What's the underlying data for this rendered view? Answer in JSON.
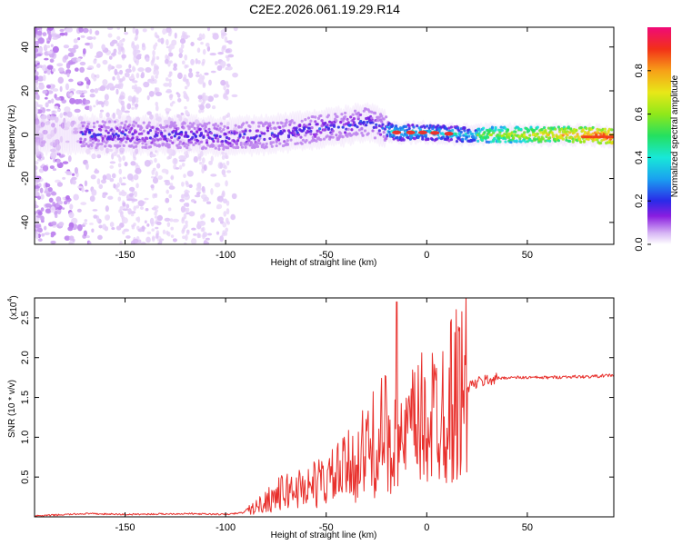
{
  "title": "C2E2.2026.061.19.29.R14",
  "chart_data": [
    {
      "type": "heatmap",
      "title": "C2E2.2026.061.19.29.R14",
      "xlabel": "Height of straight line (km)",
      "ylabel": "Frequency (Hz)",
      "xlim": [
        -195,
        93
      ],
      "ylim": [
        -50,
        49
      ],
      "xticks": [
        -150,
        -100,
        -50,
        0,
        50
      ],
      "yticks": [
        -40,
        -20,
        0,
        20,
        40
      ],
      "grid": false,
      "colorbar": {
        "label": "Normalized spectral amplitude",
        "range": [
          0,
          1
        ],
        "ticks": [
          0.0,
          0.2,
          0.4,
          0.6,
          0.8
        ],
        "tick_labels": [
          "0.0",
          "0.2",
          "0.4",
          "0.6",
          "0.8"
        ],
        "colormap": "rainbow"
      },
      "ridge": {
        "description": "centroid frequency of dominant energy vs height",
        "x": [
          -195,
          -170,
          -150,
          -120,
          -100,
          -80,
          -60,
          -40,
          -30,
          -22,
          -15,
          0,
          20,
          50,
          80,
          93
        ],
        "y": [
          0,
          0,
          0,
          0,
          -1,
          0,
          2,
          4,
          6,
          3,
          1,
          1,
          0,
          0,
          0,
          -1
        ]
      }
    },
    {
      "type": "line",
      "xlabel": "Height of straight line (km)",
      "ylabel": "SNR (10 * v/v)",
      "y_multiplier": "(x10",
      "y_multiplier_exp": "4",
      "y_multiplier_close": ")",
      "xlim": [
        -195,
        93
      ],
      "ylim": [
        0,
        2.75
      ],
      "xticks": [
        -150,
        -100,
        -50,
        0,
        50
      ],
      "yticks": [
        0.5,
        1.0,
        1.5,
        2.0,
        2.5
      ],
      "ytick_labels": [
        "0.5",
        "1.0",
        "1.5",
        "2.0",
        "2.5"
      ],
      "grid": false,
      "series": [
        {
          "name": "SNR",
          "color": "#e8302c",
          "x": [
            -195,
            -170,
            -150,
            -120,
            -100,
            -92,
            -85,
            -80,
            -75,
            -70,
            -65,
            -60,
            -55,
            -50,
            -45,
            -40,
            -35,
            -30,
            -25,
            -20,
            -17,
            -15,
            -14,
            -12,
            -10,
            -5,
            0,
            5,
            10,
            15,
            20,
            25,
            30,
            35,
            40,
            50,
            60,
            70,
            80,
            93
          ],
          "y": [
            0.01,
            0.04,
            0.03,
            0.04,
            0.03,
            0.05,
            0.12,
            0.2,
            0.27,
            0.32,
            0.35,
            0.38,
            0.42,
            0.45,
            0.52,
            0.6,
            0.7,
            0.82,
            0.95,
            1.05,
            0.5,
            2.7,
            0.7,
            0.9,
            1.0,
            1.15,
            1.22,
            1.32,
            1.45,
            1.55,
            1.63,
            1.68,
            1.72,
            1.74,
            1.75,
            1.75,
            1.75,
            1.76,
            1.76,
            1.78
          ]
        }
      ]
    }
  ]
}
